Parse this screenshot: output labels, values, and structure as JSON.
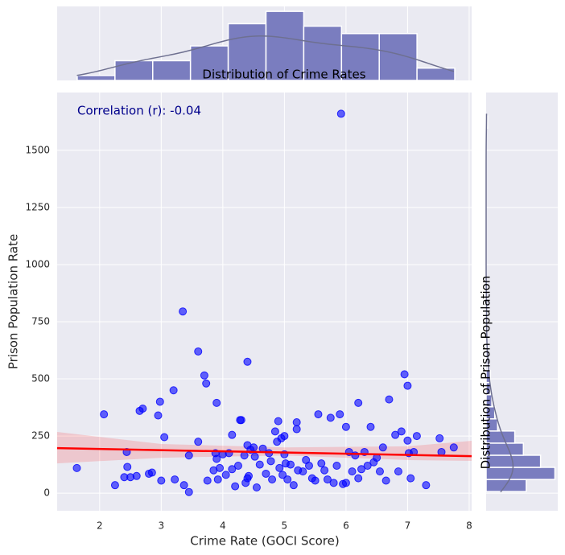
{
  "chart_data": [
    {
      "type": "scatter",
      "xlabel": "Crime Rate (GOCI Score)",
      "ylabel": "Prison Population Rate",
      "annotation": "Correlation (r): -0.04",
      "color": "#0000ff",
      "x": [
        1.63,
        2.07,
        2.25,
        2.4,
        2.44,
        2.45,
        2.5,
        2.6,
        2.65,
        2.7,
        2.8,
        2.85,
        2.95,
        2.98,
        3.0,
        3.05,
        3.2,
        3.22,
        3.35,
        3.37,
        3.45,
        3.45,
        3.6,
        3.6,
        3.7,
        3.73,
        3.75,
        3.85,
        3.88,
        3.9,
        3.9,
        3.92,
        3.95,
        4.0,
        4.05,
        4.1,
        4.15,
        4.15,
        4.2,
        4.25,
        4.28,
        4.3,
        4.35,
        4.37,
        4.4,
        4.4,
        4.4,
        4.42,
        4.45,
        4.5,
        4.52,
        4.55,
        4.6,
        4.65,
        4.7,
        4.75,
        4.78,
        4.8,
        4.85,
        4.88,
        4.9,
        4.92,
        4.95,
        4.97,
        5.0,
        5.0,
        5.02,
        5.05,
        5.1,
        5.15,
        5.2,
        5.2,
        5.22,
        5.3,
        5.35,
        5.4,
        5.45,
        5.5,
        5.55,
        5.6,
        5.65,
        5.7,
        5.75,
        5.8,
        5.85,
        5.9,
        5.92,
        5.95,
        6.0,
        6.0,
        6.05,
        6.1,
        6.15,
        6.2,
        6.2,
        6.25,
        6.3,
        6.35,
        6.4,
        6.45,
        6.5,
        6.55,
        6.6,
        6.65,
        6.7,
        6.8,
        6.85,
        6.9,
        6.95,
        7.0,
        7.0,
        7.02,
        7.05,
        7.1,
        7.15,
        7.3,
        7.52,
        7.55,
        7.75
      ],
      "y": [
        110,
        345,
        35,
        70,
        180,
        115,
        70,
        75,
        360,
        370,
        85,
        90,
        340,
        400,
        55,
        245,
        450,
        60,
        795,
        35,
        5,
        165,
        620,
        225,
        515,
        480,
        55,
        100,
        175,
        395,
        150,
        60,
        110,
        170,
        80,
        175,
        255,
        105,
        30,
        120,
        320,
        320,
        165,
        45,
        575,
        210,
        65,
        75,
        190,
        200,
        160,
        25,
        125,
        195,
        85,
        175,
        140,
        60,
        270,
        225,
        315,
        110,
        240,
        80,
        170,
        250,
        130,
        60,
        125,
        35,
        310,
        280,
        100,
        95,
        145,
        120,
        65,
        55,
        345,
        130,
        100,
        60,
        330,
        45,
        120,
        345,
        1660,
        40,
        290,
        45,
        180,
        95,
        165,
        395,
        65,
        105,
        180,
        120,
        290,
        135,
        155,
        95,
        200,
        55,
        410,
        255,
        95,
        270,
        520,
        470,
        230,
        175,
        65,
        180,
        250,
        35,
        240,
        180,
        200
      ],
      "xlim": [
        1.31,
        8.04
      ],
      "ylim": [
        -77,
        1753
      ],
      "xticks": [
        2,
        3,
        4,
        5,
        6,
        7,
        8
      ],
      "yticks": [
        0,
        250,
        500,
        750,
        1000,
        1250,
        1500
      ],
      "grid": true,
      "regression": {
        "color": "#ff0000",
        "x": [
          1.31,
          8.04
        ],
        "y": [
          197,
          162
        ],
        "band_x": [
          1.31,
          3,
          5,
          7,
          8.04
        ],
        "band_lower": [
          130,
          155,
          165,
          145,
          141
        ],
        "band_upper": [
          268,
          215,
          200,
          205,
          229
        ]
      }
    },
    {
      "type": "histogram",
      "title": "Distribution of Crime Rates",
      "color": "#7a7dbf",
      "bins": [
        1.636,
        2.249,
        2.862,
        3.475,
        4.088,
        4.701,
        5.314,
        5.927,
        6.54,
        7.153,
        7.766
      ],
      "counts": [
        2,
        8,
        8,
        14,
        23,
        28,
        22,
        19,
        19,
        5
      ],
      "ylim": [
        0,
        30
      ]
    },
    {
      "type": "histogram",
      "orientation": "horizontal",
      "title": "Distribution of Prison Population",
      "color": "#7a7dbf",
      "bins": [
        7,
        60,
        113,
        166,
        219,
        272,
        325,
        378,
        431,
        484,
        537,
        590,
        643,
        696,
        749,
        802,
        855,
        908,
        961,
        1014,
        1067,
        1120,
        1173,
        1226,
        1279,
        1332,
        1385,
        1438,
        1491,
        1544,
        1597,
        1650
      ],
      "counts": [
        28,
        48,
        38,
        26,
        20,
        8,
        6,
        4,
        3,
        3,
        1,
        1,
        0,
        0,
        1,
        0,
        0,
        0,
        0,
        0,
        0,
        0,
        0,
        0,
        0,
        0,
        0,
        0,
        0,
        0,
        1
      ],
      "xlim": [
        0,
        50
      ]
    }
  ]
}
